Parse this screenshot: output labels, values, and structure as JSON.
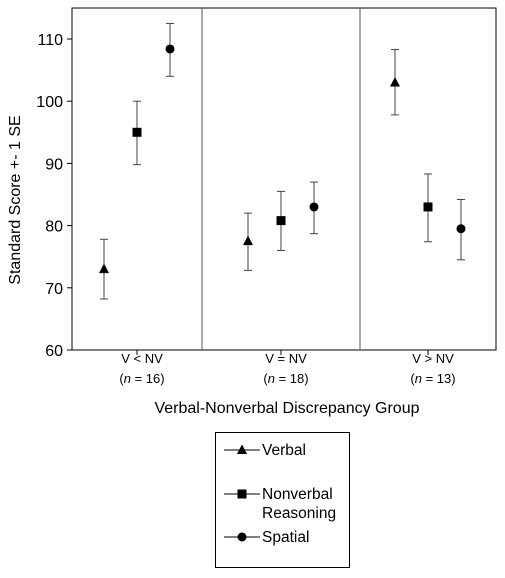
{
  "chart_data": {
    "type": "scatter",
    "ylabel": "Standard Score +- 1 SE",
    "xlabel": "Verbal-Nonverbal Discrepancy Group",
    "ylim": [
      60,
      115
    ],
    "yticks": [
      60,
      70,
      80,
      90,
      100,
      110
    ],
    "grid": false,
    "legend_position": "bottom",
    "groups": [
      {
        "label": "V < NV",
        "n_prefix": "(",
        "n_symbol": "n",
        "n_suffix": " = 16)"
      },
      {
        "label": "V = NV",
        "n_prefix": "(",
        "n_symbol": "n",
        "n_suffix": " = 18)"
      },
      {
        "label": "V > NV",
        "n_prefix": "(",
        "n_symbol": "n",
        "n_suffix": " =  13)"
      }
    ],
    "series": [
      {
        "name": "Verbal",
        "marker": "triangle",
        "values": [
          73,
          77.5,
          103
        ],
        "lower": [
          68.2,
          72.8,
          97.8
        ],
        "upper": [
          77.8,
          82,
          108.3
        ]
      },
      {
        "name": "Nonverbal\nReasoning",
        "marker": "square",
        "values": [
          95,
          80.8,
          83
        ],
        "lower": [
          89.8,
          76,
          77.4
        ],
        "upper": [
          100,
          85.5,
          88.3
        ]
      },
      {
        "name": "Spatial",
        "marker": "circle",
        "values": [
          108.4,
          83,
          79.5
        ],
        "lower": [
          104,
          78.7,
          74.5
        ],
        "upper": [
          112.5,
          87,
          84.2
        ]
      }
    ]
  }
}
